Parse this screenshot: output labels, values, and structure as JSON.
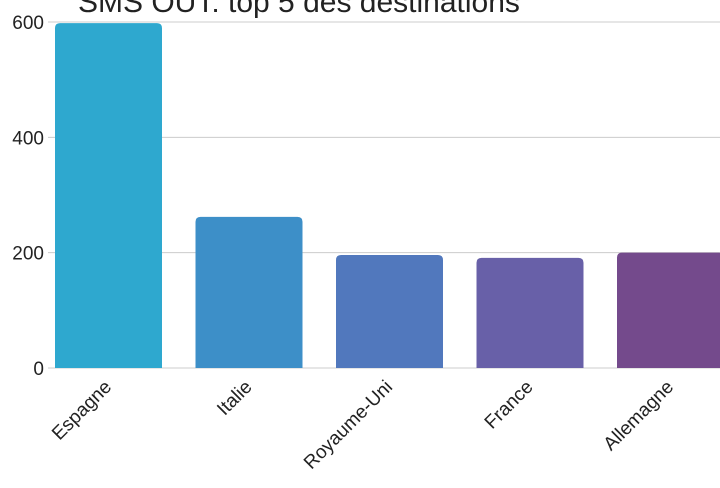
{
  "chart_data": {
    "type": "bar",
    "title": "SMS OUT: top 5 des destinations",
    "categories": [
      "Espagne",
      "Italie",
      "Royaume-Uni",
      "France",
      "Allemagne"
    ],
    "values": [
      598,
      262,
      196,
      191,
      200
    ],
    "colors": [
      "#2ea8cf",
      "#3d8fc8",
      "#5178bd",
      "#6860a8",
      "#744a8c"
    ],
    "ylim": [
      0,
      600
    ],
    "yticks": [
      0,
      200,
      400,
      600
    ],
    "grid": true,
    "legend": "none"
  }
}
